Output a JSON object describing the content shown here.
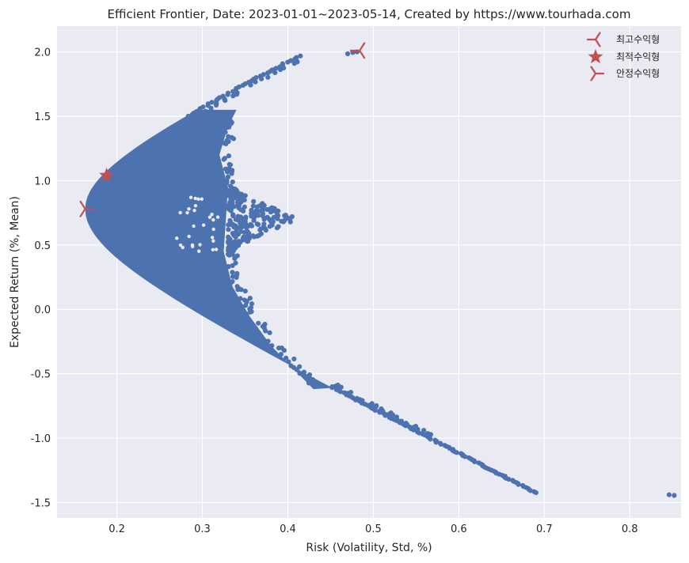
{
  "chart_data": {
    "type": "scatter",
    "title": "Efficient Frontier,  Date: 2023-01-01~2023-05-14, Created by https://www.tourhada.com",
    "xlabel": "Risk (Volatility, Std, %)",
    "ylabel": "Expected Return (%, Mean)",
    "xlim": [
      0.13,
      0.86
    ],
    "ylim": [
      -1.62,
      2.2
    ],
    "x_ticks": [
      0.2,
      0.3,
      0.4,
      0.5,
      0.6,
      0.7,
      0.8
    ],
    "x_tick_labels": [
      "0.2",
      "0.3",
      "0.4",
      "0.5",
      "0.6",
      "0.7",
      "0.8"
    ],
    "y_ticks": [
      2.0,
      1.5,
      1.0,
      0.5,
      0.0,
      -0.5,
      -1.0,
      -1.5
    ],
    "y_tick_labels": [
      "2.0",
      "1.5",
      "1.0",
      "0.5",
      "0.0",
      "-0.5",
      "-1.0",
      "-1.5"
    ],
    "grid": true,
    "background": "#eaeaf2",
    "scatter_color": "#4c72b0",
    "marker_color": "#c44e52",
    "legend_position": "top-right",
    "portfolios_region": {
      "min_variance_point": {
        "x": 0.163,
        "y": 0.78
      },
      "upper_tip": {
        "x": 0.485,
        "y": 2.02
      },
      "lower_tip": {
        "x": 0.853,
        "y": -1.44
      },
      "dense_right_edge_upper": {
        "x": 0.33,
        "y": 1.15
      },
      "dense_right_edge_lower": {
        "x": 0.33,
        "y": 0.3
      },
      "cluster_right_end": {
        "x": 0.41,
        "y": 0.7
      }
    },
    "special_points": [
      {
        "label": "최고수익형",
        "marker": "tri_left",
        "x": 0.484,
        "y": 2.01
      },
      {
        "label": "최적수익형",
        "marker": "star",
        "x": 0.188,
        "y": 1.04
      },
      {
        "label": "안정수익형",
        "marker": "tri_right",
        "x": 0.163,
        "y": 0.78
      }
    ]
  }
}
